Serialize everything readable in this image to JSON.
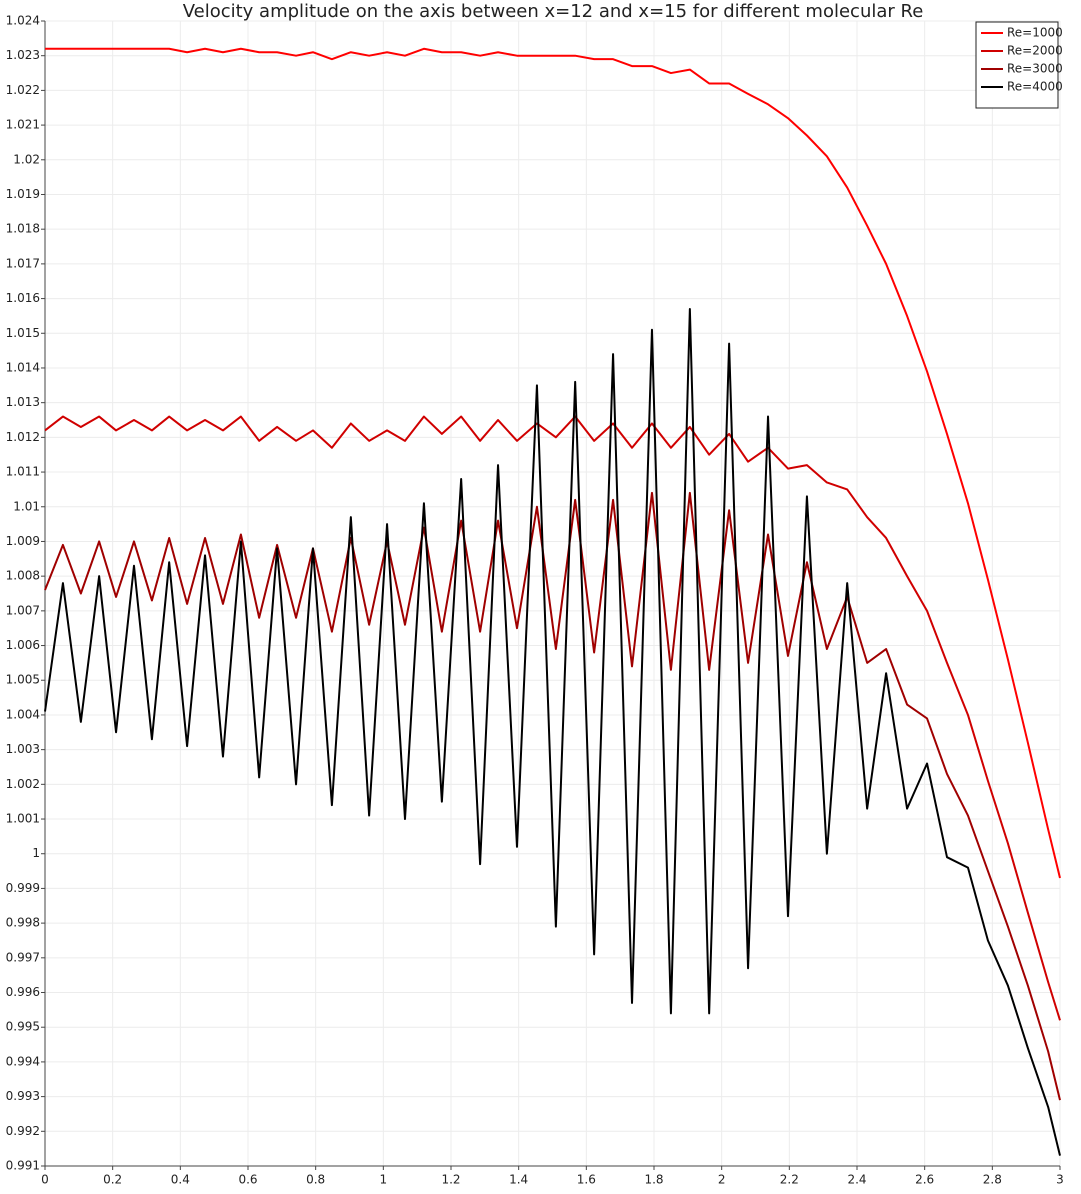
{
  "chart_data": {
    "type": "line",
    "title": "Velocity amplitude on the axis between x=12 and x=15 for different molecular Re",
    "x": [
      0,
      0.053,
      0.106,
      0.16,
      0.21,
      0.263,
      0.316,
      0.367,
      0.42,
      0.473,
      0.526,
      0.579,
      0.633,
      0.686,
      0.742,
      0.792,
      0.848,
      0.904,
      0.958,
      1.011,
      1.064,
      1.12,
      1.173,
      1.23,
      1.286,
      1.339,
      1.395,
      1.454,
      1.51,
      1.567,
      1.623,
      1.679,
      1.735,
      1.794,
      1.85,
      1.906,
      1.963,
      2.022,
      2.078,
      2.137,
      2.196,
      2.252,
      2.311,
      2.371,
      2.43,
      2.486,
      2.548,
      2.607,
      2.666,
      2.728,
      2.787,
      2.846,
      2.905,
      2.965,
      3.0
    ],
    "series": [
      {
        "name": "Re=1000",
        "color": "#ff0000",
        "values": [
          1.0232,
          1.0232,
          1.0232,
          1.0232,
          1.0232,
          1.0232,
          1.0232,
          1.0232,
          1.0231,
          1.0232,
          1.0231,
          1.0232,
          1.0231,
          1.0231,
          1.023,
          1.0231,
          1.0229,
          1.0231,
          1.023,
          1.0231,
          1.023,
          1.0232,
          1.0231,
          1.0231,
          1.023,
          1.0231,
          1.023,
          1.023,
          1.023,
          1.023,
          1.0229,
          1.0229,
          1.0227,
          1.0227,
          1.0225,
          1.0226,
          1.0222,
          1.0222,
          1.0219,
          1.0216,
          1.0212,
          1.0207,
          1.0201,
          1.0192,
          1.0181,
          1.017,
          1.0155,
          1.0139,
          1.0121,
          1.0101,
          1.0079,
          1.0056,
          1.0032,
          1.0007,
          0.9993
        ]
      },
      {
        "name": "Re=2000",
        "color": "#d00000",
        "values": [
          1.0122,
          1.0126,
          1.0123,
          1.0126,
          1.0122,
          1.0125,
          1.0122,
          1.0126,
          1.0122,
          1.0125,
          1.0122,
          1.0126,
          1.0119,
          1.0123,
          1.0119,
          1.0122,
          1.0117,
          1.0124,
          1.0119,
          1.0122,
          1.0119,
          1.0126,
          1.0121,
          1.0126,
          1.0119,
          1.0125,
          1.0119,
          1.0124,
          1.012,
          1.0126,
          1.0119,
          1.0124,
          1.0117,
          1.0124,
          1.0117,
          1.0123,
          1.0115,
          1.0121,
          1.0113,
          1.0117,
          1.0111,
          1.0112,
          1.0107,
          1.0105,
          1.0097,
          1.0091,
          1.008,
          1.007,
          1.0055,
          1.004,
          1.0021,
          1.0003,
          0.9983,
          0.9963,
          0.9952
        ]
      },
      {
        "name": "Re=3000",
        "color": "#a00000",
        "values": [
          1.0076,
          1.0089,
          1.0075,
          1.009,
          1.0074,
          1.009,
          1.0073,
          1.0091,
          1.0072,
          1.0091,
          1.0072,
          1.0092,
          1.0068,
          1.0089,
          1.0068,
          1.0088,
          1.0064,
          1.0091,
          1.0066,
          1.009,
          1.0066,
          1.0094,
          1.0064,
          1.0096,
          1.0064,
          1.0096,
          1.0065,
          1.01,
          1.0059,
          1.0102,
          1.0058,
          1.0102,
          1.0054,
          1.0104,
          1.0053,
          1.0104,
          1.0053,
          1.0099,
          1.0055,
          1.0092,
          1.0057,
          1.0084,
          1.0059,
          1.0074,
          1.0055,
          1.0059,
          1.0043,
          1.0039,
          1.0023,
          1.0011,
          0.9995,
          0.9979,
          0.9962,
          0.9943,
          0.9929
        ]
      },
      {
        "name": "Re=4000",
        "color": "#000000",
        "values": [
          1.0041,
          1.0078,
          1.0038,
          1.008,
          1.0035,
          1.0083,
          1.0033,
          1.0084,
          1.0031,
          1.0086,
          1.0028,
          1.009,
          1.0022,
          1.0088,
          1.002,
          1.0088,
          1.0014,
          1.0097,
          1.0011,
          1.0095,
          1.001,
          1.0101,
          1.0015,
          1.0108,
          0.9997,
          1.0112,
          1.0002,
          1.0135,
          0.9979,
          1.0136,
          0.9971,
          1.0144,
          0.9957,
          1.0151,
          0.9954,
          1.0157,
          0.9954,
          1.0147,
          0.9967,
          1.0126,
          0.9982,
          1.0103,
          1.0,
          1.0078,
          1.0013,
          1.0052,
          1.0013,
          1.0026,
          0.9999,
          0.9996,
          0.9975,
          0.9962,
          0.9944,
          0.9927,
          0.9913
        ]
      }
    ],
    "xlim": [
      0,
      3
    ],
    "xticks": [
      0,
      0.2,
      0.4,
      0.6,
      0.8,
      1,
      1.2,
      1.4,
      1.6,
      1.8,
      2,
      2.2,
      2.4,
      2.6,
      2.8,
      3
    ],
    "ylim": [
      0.991,
      1.024
    ],
    "yticks": [
      0.991,
      0.992,
      0.993,
      0.994,
      0.995,
      0.996,
      0.997,
      0.998,
      0.999,
      1,
      1.001,
      1.002,
      1.003,
      1.004,
      1.005,
      1.006,
      1.007,
      1.008,
      1.009,
      1.01,
      1.011,
      1.012,
      1.013,
      1.014,
      1.015,
      1.016,
      1.017,
      1.018,
      1.019,
      1.02,
      1.021,
      1.022,
      1.023,
      1.024
    ],
    "grid": true,
    "legend": "top-right"
  }
}
